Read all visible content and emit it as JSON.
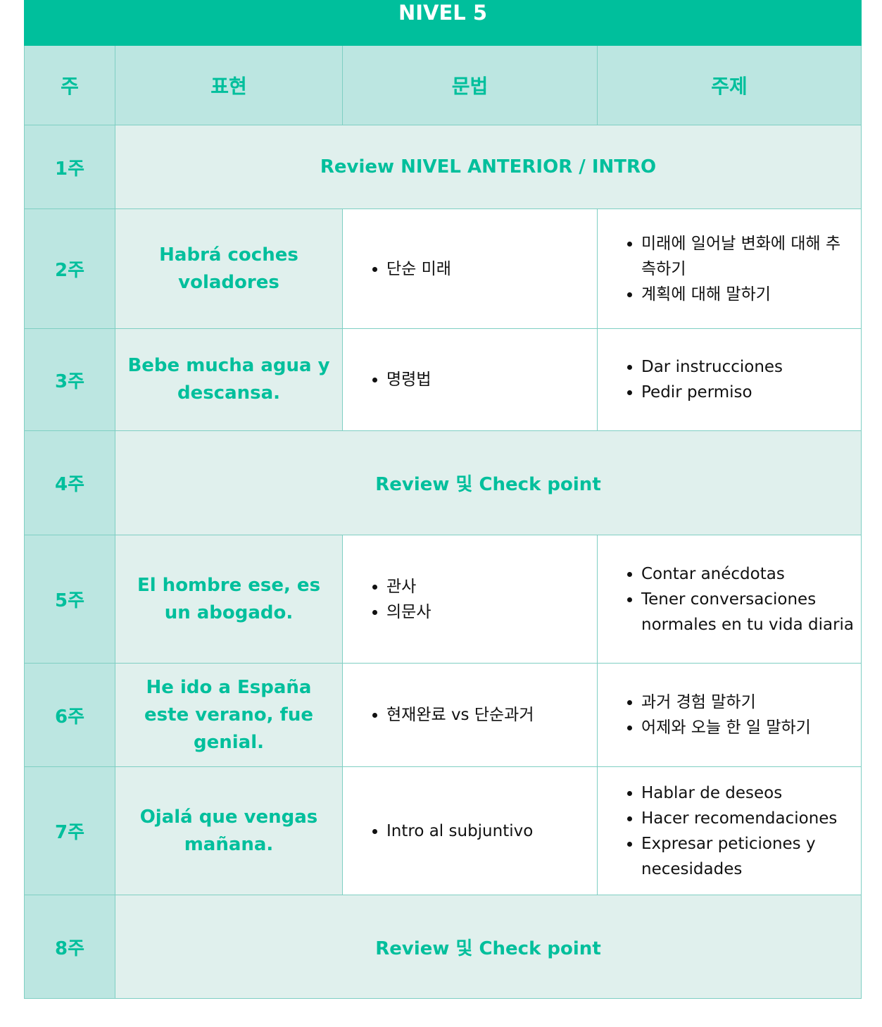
{
  "title": "NIVEL 5",
  "headers": [
    "주",
    "표현",
    "문법",
    "주제"
  ],
  "rows": [
    {
      "week": "1주",
      "span": "Review NIVEL ANTERIOR / INTRO"
    },
    {
      "week": "2주",
      "expression": "Habrá coches voladores",
      "grammar": [
        "단순 미래"
      ],
      "topics": [
        "미래에 일어날 변화에 대해 추측하기",
        "계획에 대해 말하기"
      ]
    },
    {
      "week": "3주",
      "expression": "Bebe mucha agua y descansa.",
      "grammar": [
        "명령법"
      ],
      "topics": [
        "Dar instrucciones",
        "Pedir permiso"
      ]
    },
    {
      "week": "4주",
      "span": "Review 및 Check point"
    },
    {
      "week": "5주",
      "expression": "El hombre ese, es un abogado.",
      "grammar": [
        "관사",
        "의문사"
      ],
      "topics": [
        "Contar anécdotas",
        "Tener conversaciones normales en tu vida diaria"
      ]
    },
    {
      "week": "6주",
      "expression": "He ido a España este verano, fue genial.",
      "grammar": [
        "현재완료 vs 단순과거"
      ],
      "topics": [
        "과거 경험 말하기",
        "어제와 오늘 한 일 말하기"
      ]
    },
    {
      "week": "7주",
      "expression": "Ojalá que vengas mañana.",
      "grammar": [
        "Intro al subjuntivo"
      ],
      "topics": [
        "Hablar de deseos",
        "Hacer recomendaciones",
        "Expresar peticiones y necesidades"
      ]
    },
    {
      "week": "8주",
      "span": "Review 및 Check point"
    }
  ]
}
